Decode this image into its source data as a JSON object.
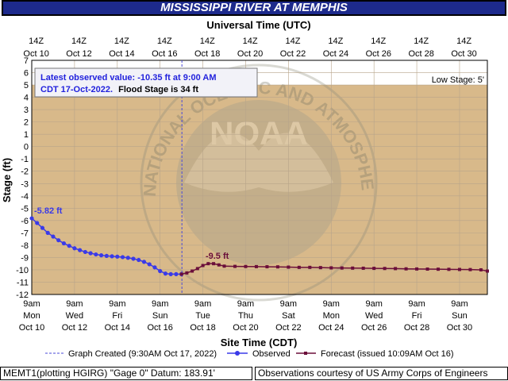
{
  "title": "MISSISSIPPI RIVER AT MEMPHIS",
  "colors": {
    "title_bg": "#1d2a8c",
    "plot_above_low": "#ffffff",
    "plot_bg": "#d8b98a",
    "observed": "#3a3ae8",
    "forecast": "#6b0f3a",
    "created_line": "#4a4ad8",
    "grid": "#b7a48a"
  },
  "chart_data": {
    "type": "line",
    "top_axis_label": "Universal Time (UTC)",
    "top_ticks": [
      [
        "14Z",
        "Oct 10"
      ],
      [
        "14Z",
        "Oct 12"
      ],
      [
        "14Z",
        "Oct 14"
      ],
      [
        "14Z",
        "Oct 16"
      ],
      [
        "14Z",
        "Oct 18"
      ],
      [
        "14Z",
        "Oct 20"
      ],
      [
        "14Z",
        "Oct 22"
      ],
      [
        "14Z",
        "Oct 24"
      ],
      [
        "14Z",
        "Oct 26"
      ],
      [
        "14Z",
        "Oct 28"
      ],
      [
        "14Z",
        "Oct 30"
      ]
    ],
    "xlabel": "Site Time (CDT)",
    "bottom_ticks": [
      [
        "9am",
        "Mon",
        "Oct 10"
      ],
      [
        "9am",
        "Wed",
        "Oct 12"
      ],
      [
        "9am",
        "Fri",
        "Oct 14"
      ],
      [
        "9am",
        "Sun",
        "Oct 16"
      ],
      [
        "9am",
        "Tue",
        "Oct 18"
      ],
      [
        "9am",
        "Thu",
        "Oct 20"
      ],
      [
        "9am",
        "Sat",
        "Oct 22"
      ],
      [
        "9am",
        "Mon",
        "Oct 24"
      ],
      [
        "9am",
        "Wed",
        "Oct 26"
      ],
      [
        "9am",
        "Fri",
        "Oct 28"
      ],
      [
        "9am",
        "Sun",
        "Oct 30"
      ]
    ],
    "ylabel": "Stage (ft)",
    "ylim": [
      -12,
      7
    ],
    "yticks": [
      7,
      6,
      5,
      4,
      3,
      2,
      1,
      0,
      -1,
      -2,
      -3,
      -4,
      -5,
      -6,
      -7,
      -8,
      -9,
      -10,
      -11,
      -12
    ],
    "xlim_days_from_oct10_9am": [
      0,
      21.3
    ],
    "grid": true,
    "low_stage_label": "Low Stage: 5'",
    "low_stage_value": 5,
    "graph_created_day": 7.02,
    "info_box": {
      "line1": "Latest observed value: -10.35 ft at 9:00 AM",
      "line2_date": "CDT 17-Oct-2022.",
      "line2_flood": "Flood Stage is 34 ft"
    },
    "annotations": [
      {
        "text": "-5.82 ft",
        "series": "Observed"
      },
      {
        "text": "-9.5 ft",
        "series": "Forecast"
      }
    ],
    "series": [
      {
        "name": "Observed",
        "x": [
          0,
          0.25,
          0.5,
          0.75,
          1,
          1.25,
          1.5,
          1.75,
          2,
          2.25,
          2.5,
          2.75,
          3,
          3.25,
          3.5,
          3.75,
          4,
          4.25,
          4.5,
          4.75,
          5,
          5.25,
          5.5,
          5.75,
          6,
          6.25,
          6.5,
          6.75,
          7
        ],
        "values": [
          -5.82,
          -6.2,
          -6.6,
          -7.0,
          -7.3,
          -7.6,
          -7.85,
          -8.05,
          -8.25,
          -8.4,
          -8.55,
          -8.65,
          -8.75,
          -8.82,
          -8.87,
          -8.9,
          -8.93,
          -8.97,
          -9.02,
          -9.1,
          -9.2,
          -9.35,
          -9.55,
          -9.8,
          -10.1,
          -10.3,
          -10.35,
          -10.35,
          -10.35
        ]
      },
      {
        "name": "Forecast",
        "x": [
          7,
          7.25,
          7.5,
          7.75,
          8,
          8.25,
          8.5,
          8.75,
          9,
          9.5,
          10,
          10.5,
          11,
          11.5,
          12,
          12.5,
          13,
          13.5,
          14,
          14.5,
          15,
          15.5,
          16,
          16.5,
          17,
          17.5,
          18,
          18.5,
          19,
          19.5,
          20,
          20.5,
          21,
          21.3
        ],
        "values": [
          -10.35,
          -10.25,
          -10.1,
          -9.9,
          -9.65,
          -9.5,
          -9.5,
          -9.6,
          -9.7,
          -9.72,
          -9.73,
          -9.74,
          -9.75,
          -9.76,
          -9.78,
          -9.8,
          -9.8,
          -9.82,
          -9.84,
          -9.85,
          -9.86,
          -9.87,
          -9.88,
          -9.89,
          -9.9,
          -9.92,
          -9.93,
          -9.94,
          -9.95,
          -9.96,
          -9.97,
          -9.98,
          -10.0,
          -10.1
        ]
      }
    ],
    "legend": [
      {
        "label": "Graph Created (9:30AM Oct 17, 2022)",
        "kind": "dashed"
      },
      {
        "label": "Observed",
        "kind": "observed"
      },
      {
        "label": "Forecast (issued 10:09AM Oct 16)",
        "kind": "forecast"
      }
    ]
  },
  "footer": {
    "left": "MEMT1(plotting HGIRG) \"Gage 0\" Datum: 183.91'",
    "right": "Observations courtesy of US Army Corps of Engineers"
  },
  "watermark": {
    "logo_text": "NOAA",
    "ring_text": "NATIONAL OCEANIC AND ATMOSPHERIC ADMINISTRATION · U.S. DEPARTMENT OF COMMERCE"
  }
}
